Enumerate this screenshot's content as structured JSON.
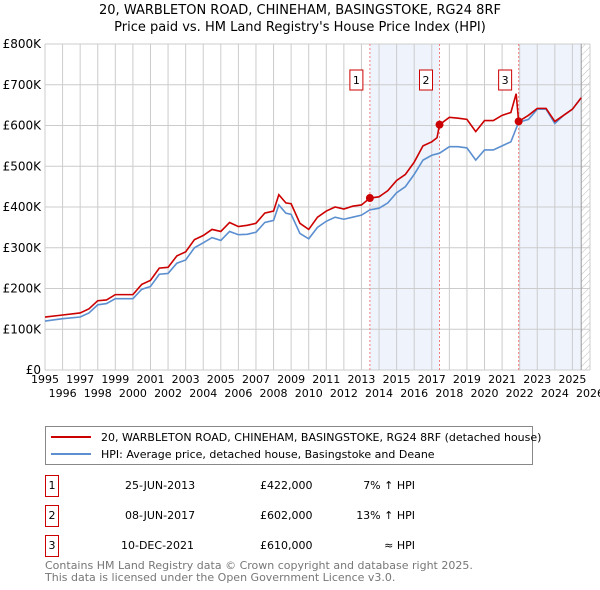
{
  "chart_data": {
    "type": "line",
    "title": "20, WARBLETON ROAD, CHINEHAM, BASINGSTOKE, RG24 8RF",
    "subtitle": "Price paid vs. HM Land Registry's House Price Index (HPI)",
    "xlim": [
      1995,
      2026
    ],
    "ylim": [
      0,
      800000
    ],
    "y_ticks": [
      {
        "v": 0,
        "label": "£0"
      },
      {
        "v": 100000,
        "label": "£100K"
      },
      {
        "v": 200000,
        "label": "£200K"
      },
      {
        "v": 300000,
        "label": "£300K"
      },
      {
        "v": 400000,
        "label": "£400K"
      },
      {
        "v": 500000,
        "label": "£500K"
      },
      {
        "v": 600000,
        "label": "£600K"
      },
      {
        "v": 700000,
        "label": "£700K"
      },
      {
        "v": 800000,
        "label": "£800K"
      }
    ],
    "x_ticks": [
      "1995",
      "1996",
      "1997",
      "1998",
      "1999",
      "2000",
      "2001",
      "2002",
      "2003",
      "2004",
      "2005",
      "2006",
      "2007",
      "2008",
      "2009",
      "2010",
      "2011",
      "2012",
      "2013",
      "2014",
      "2015",
      "2016",
      "2017",
      "2018",
      "2019",
      "2020",
      "2021",
      "2022",
      "2023",
      "2024",
      "2025",
      "2026"
    ],
    "grid": true,
    "shaded_ranges": [
      [
        2013.48,
        2017.44
      ],
      [
        2021.94,
        2025.5
      ]
    ],
    "hatched_range": [
      2025.5,
      2026
    ],
    "series": [
      {
        "name": "20, WARBLETON ROAD, CHINEHAM, BASINGSTOKE, RG24 8RF (detached house)",
        "color": "#cc0000",
        "x": [
          1995,
          1996,
          1997,
          1997.5,
          1998,
          1998.5,
          1999,
          2000,
          2000.5,
          2001,
          2001.5,
          2002,
          2002.5,
          2003,
          2003.5,
          2004,
          2004.5,
          2005,
          2005.5,
          2006,
          2006.5,
          2007,
          2007.5,
          2008,
          2008.3,
          2008.7,
          2009,
          2009.5,
          2010,
          2010.5,
          2011,
          2011.5,
          2012,
          2012.5,
          2013,
          2013.48,
          2014,
          2014.5,
          2015,
          2015.5,
          2016,
          2016.5,
          2017,
          2017.3,
          2017.44,
          2018,
          2018.5,
          2019,
          2019.5,
          2020,
          2020.5,
          2021,
          2021.5,
          2021.8,
          2021.94,
          2022.5,
          2023,
          2023.5,
          2024,
          2024.5,
          2025,
          2025.5
        ],
        "y": [
          130000,
          135000,
          140000,
          150000,
          170000,
          172000,
          185000,
          185000,
          210000,
          220000,
          250000,
          252000,
          280000,
          290000,
          320000,
          330000,
          345000,
          340000,
          362000,
          352000,
          355000,
          360000,
          385000,
          390000,
          430000,
          410000,
          408000,
          360000,
          345000,
          375000,
          390000,
          400000,
          395000,
          402000,
          405000,
          422000,
          425000,
          440000,
          465000,
          480000,
          510000,
          550000,
          560000,
          570000,
          602000,
          620000,
          618000,
          615000,
          585000,
          612000,
          612000,
          625000,
          632000,
          678000,
          610000,
          625000,
          642000,
          642000,
          610000,
          625000,
          640000,
          668000
        ]
      },
      {
        "name": "HPI: Average price, detached house, Basingstoke and Deane",
        "color": "#5b8fd0",
        "x": [
          1995,
          1996,
          1997,
          1997.5,
          1998,
          1998.5,
          1999,
          2000,
          2000.5,
          2001,
          2001.5,
          2002,
          2002.5,
          2003,
          2003.5,
          2004,
          2004.5,
          2005,
          2005.5,
          2006,
          2006.5,
          2007,
          2007.5,
          2008,
          2008.3,
          2008.7,
          2009,
          2009.5,
          2010,
          2010.5,
          2011,
          2011.5,
          2012,
          2012.5,
          2013,
          2013.48,
          2014,
          2014.5,
          2015,
          2015.5,
          2016,
          2016.5,
          2017,
          2017.44,
          2018,
          2018.5,
          2019,
          2019.5,
          2020,
          2020.5,
          2021,
          2021.5,
          2021.94,
          2022.5,
          2023,
          2023.5,
          2024,
          2024.5,
          2025,
          2025.5
        ],
        "y": [
          120000,
          126000,
          130000,
          140000,
          160000,
          163000,
          175000,
          175000,
          198000,
          205000,
          235000,
          237000,
          262000,
          270000,
          300000,
          312000,
          325000,
          318000,
          340000,
          332000,
          333000,
          338000,
          362000,
          367000,
          405000,
          385000,
          382000,
          335000,
          322000,
          350000,
          365000,
          375000,
          370000,
          375000,
          380000,
          393000,
          397000,
          410000,
          435000,
          450000,
          480000,
          515000,
          527000,
          532000,
          548000,
          548000,
          545000,
          515000,
          540000,
          540000,
          550000,
          560000,
          608000,
          615000,
          640000,
          640000,
          605000,
          625000,
          640000,
          668000
        ]
      }
    ],
    "sales": [
      {
        "label": "1",
        "x": 2013.48,
        "y": 422000,
        "date": "25-JUN-2013",
        "price": "£422,000",
        "relation": "7% ↑ HPI"
      },
      {
        "label": "2",
        "x": 2017.44,
        "y": 602000,
        "date": "08-JUN-2017",
        "price": "£602,000",
        "relation": "13% ↑ HPI"
      },
      {
        "label": "3",
        "x": 2021.94,
        "y": 610000,
        "date": "10-DEC-2021",
        "price": "£610,000",
        "relation": "≈ HPI"
      }
    ]
  },
  "footer": {
    "line1": "Contains HM Land Registry data © Crown copyright and database right 2025.",
    "line2": "This data is licensed under the Open Government Licence v3.0."
  }
}
